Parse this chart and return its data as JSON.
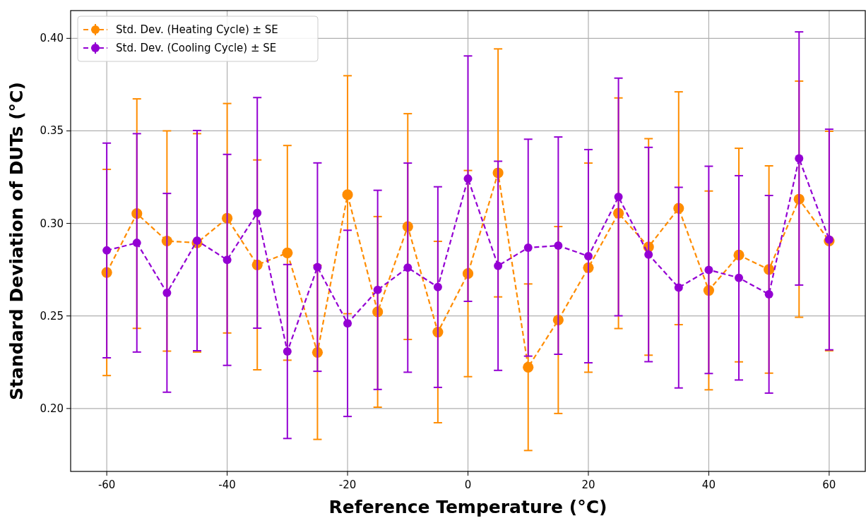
{
  "chart_data": {
    "type": "line",
    "xlabel": "Reference Temperature (°C)",
    "ylabel": "Standard Deviation of DUTs (°C)",
    "x": [
      -60,
      -55,
      -50,
      -45,
      -40,
      -35,
      -30,
      -25,
      -20,
      -15,
      -10,
      -5,
      0,
      5,
      10,
      15,
      20,
      25,
      30,
      35,
      40,
      45,
      50,
      55,
      60
    ],
    "series": [
      {
        "name": "Std. Dev. (Heating Cycle) ± SE",
        "color": "#ff8c00",
        "values": [
          0.2735,
          0.3053,
          0.2905,
          0.2895,
          0.3028,
          0.2776,
          0.2841,
          0.2303,
          0.3155,
          0.2522,
          0.2983,
          0.2413,
          0.2729,
          0.3273,
          0.2223,
          0.2478,
          0.2761,
          0.3055,
          0.2873,
          0.3082,
          0.2638,
          0.2829,
          0.2751,
          0.3131,
          0.2905
        ],
        "errors": [
          0.0557,
          0.062,
          0.0595,
          0.059,
          0.062,
          0.0567,
          0.058,
          0.047,
          0.0643,
          0.0515,
          0.061,
          0.049,
          0.0557,
          0.067,
          0.045,
          0.0505,
          0.0565,
          0.0623,
          0.0585,
          0.0629,
          0.0537,
          0.0577,
          0.056,
          0.0638,
          0.0593
        ]
      },
      {
        "name": "Std. Dev. (Cooling Cycle) ± SE",
        "color": "#9400d3",
        "values": [
          0.2854,
          0.2895,
          0.2625,
          0.2907,
          0.2803,
          0.3057,
          0.2308,
          0.2764,
          0.246,
          0.2641,
          0.2761,
          0.2656,
          0.3242,
          0.2771,
          0.2869,
          0.288,
          0.2823,
          0.3143,
          0.2832,
          0.2653,
          0.2749,
          0.2706,
          0.2617,
          0.3351,
          0.2913
        ],
        "errors": [
          0.058,
          0.059,
          0.0537,
          0.0595,
          0.057,
          0.0623,
          0.047,
          0.0563,
          0.0503,
          0.0538,
          0.0565,
          0.0542,
          0.0663,
          0.0565,
          0.0586,
          0.0587,
          0.0576,
          0.0642,
          0.0579,
          0.0542,
          0.056,
          0.0552,
          0.0534,
          0.0684,
          0.0596
        ]
      }
    ],
    "xlim": [
      -66,
      66
    ],
    "xticks": [
      -60,
      -40,
      -20,
      0,
      20,
      40,
      60
    ],
    "ylim": [
      0.166,
      0.415
    ],
    "yticks": [
      {
        "value": 0.2,
        "label": "0.20"
      },
      {
        "value": 0.25,
        "label": "0.25"
      },
      {
        "value": 0.3,
        "label": "0.30"
      },
      {
        "value": 0.35,
        "label": "0.35"
      },
      {
        "value": 0.4,
        "label": "0.40"
      }
    ],
    "grid": true,
    "legend": "top left",
    "marker": "circle",
    "line_style": "dashed"
  }
}
